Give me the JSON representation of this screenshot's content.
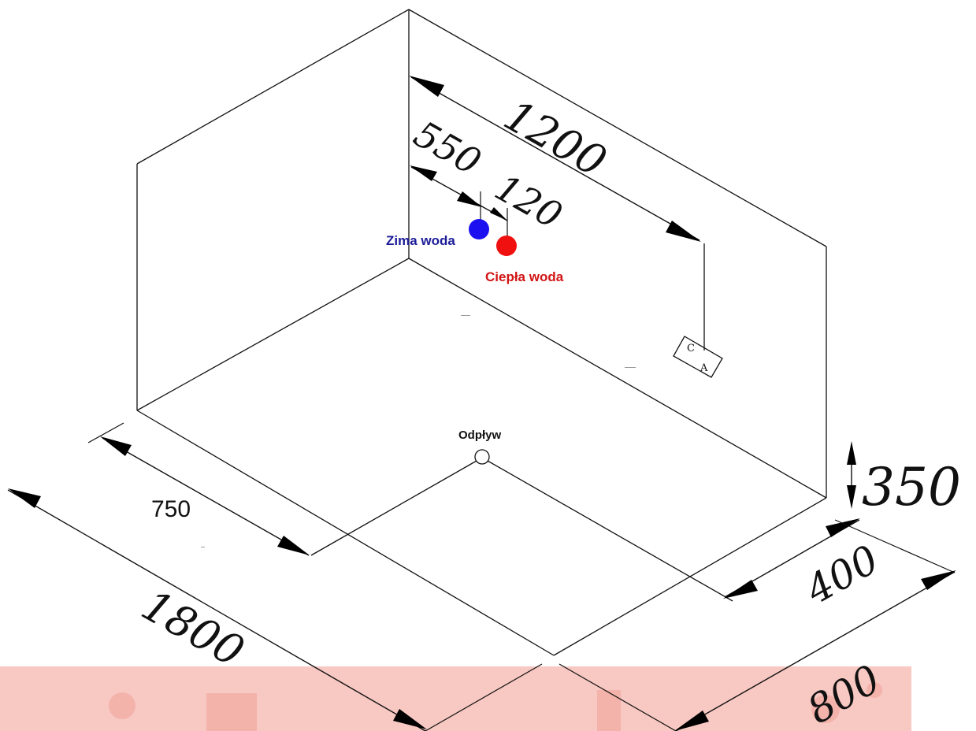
{
  "dimensions": {
    "wall_length": "1200",
    "cold_from_corner": "550",
    "pipe_spacing": "120",
    "height": "350",
    "drain_depth": "750",
    "total_length": "1800",
    "drain_offset": "400",
    "total_depth": "800"
  },
  "labels": {
    "cold_water": "Zima woda",
    "hot_water": "Ciepła woda",
    "drain": "Odpływ",
    "fitting_top": "C",
    "fitting_bottom": "A"
  },
  "colors": {
    "cold": "#1a10f0",
    "hot": "#f01010",
    "cold_text": "#1c1c9a",
    "hot_text": "#d21414",
    "band": "#f8c8c2"
  }
}
